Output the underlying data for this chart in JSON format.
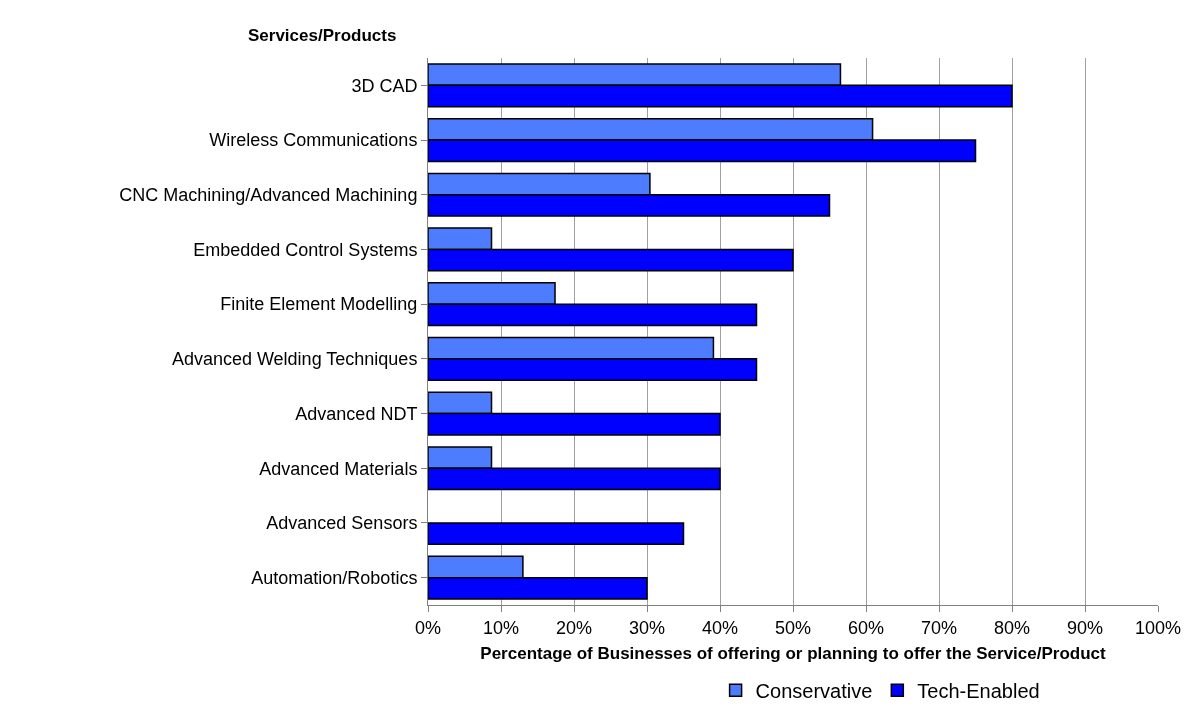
{
  "chart_data": {
    "type": "bar",
    "orientation": "horizontal",
    "ylabel": "Services/Products",
    "xlabel": "Percentage of Businesses of offering or planning to offer the Service/Product",
    "categories": [
      "3D CAD",
      "Wireless Communications",
      "CNC Machining/Advanced Machining",
      "Embedded Control Systems",
      "Finite Element Modelling",
      "Advanced Welding Techniques",
      "Advanced NDT",
      "Advanced Materials",
      "Advanced Sensors",
      "Automation/Robotics"
    ],
    "series": [
      {
        "name": "Conservative",
        "color": "#4d7cff",
        "values": [
          56.5,
          60.9,
          30.4,
          8.7,
          17.4,
          39.1,
          8.7,
          8.7,
          null,
          13.0
        ]
      },
      {
        "name": "Tech-Enabled",
        "color": "#0000ff",
        "values": [
          80,
          75,
          55,
          50,
          45,
          45,
          40,
          40,
          35,
          30
        ]
      }
    ],
    "xlim": [
      0,
      100
    ],
    "xticks": [
      {
        "value": 0,
        "label": "0%"
      },
      {
        "value": 10,
        "label": "10%"
      },
      {
        "value": 20,
        "label": "20%"
      },
      {
        "value": 30,
        "label": "30%"
      },
      {
        "value": 40,
        "label": "40%"
      },
      {
        "value": 50,
        "label": "50%"
      },
      {
        "value": 60,
        "label": "60%"
      },
      {
        "value": 70,
        "label": "70%"
      },
      {
        "value": 80,
        "label": "80%"
      },
      {
        "value": 90,
        "label": "90%"
      },
      {
        "value": 100,
        "label": "100%"
      }
    ],
    "grid": "x",
    "legend": "bottom"
  }
}
